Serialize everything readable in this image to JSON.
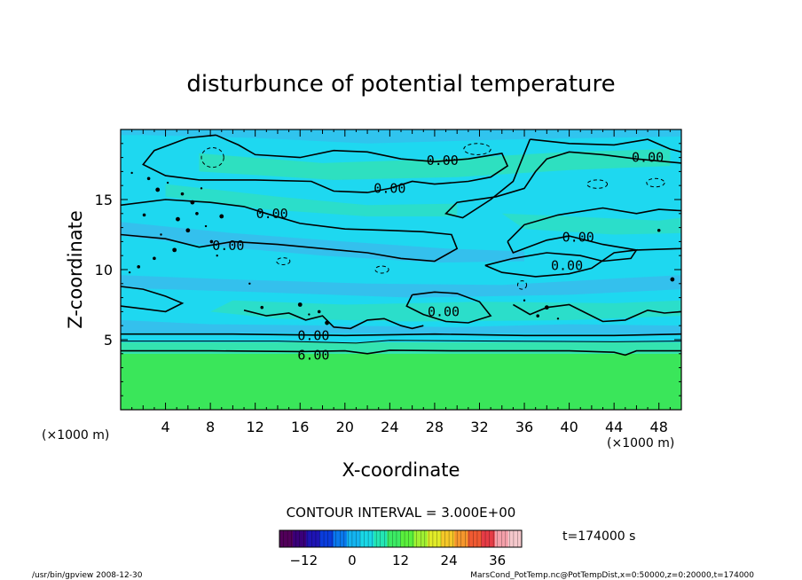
{
  "chart_data": {
    "type": "heatmap",
    "title": "disturbunce of potential temperature",
    "xlabel": "X-coordinate",
    "ylabel": "Z-coordinate",
    "x_unit": "(×1000 m)",
    "y_unit": "(×1000 m)",
    "xlim": [
      0,
      50
    ],
    "ylim": [
      0,
      20
    ],
    "x_ticks": [
      4,
      8,
      12,
      16,
      20,
      24,
      28,
      32,
      36,
      40,
      44,
      48
    ],
    "y_ticks": [
      5,
      10,
      15
    ],
    "contour_interval_text": "CONTOUR INTERVAL = 3.000E+00",
    "time_text": "t=174000 s",
    "colorbar": {
      "min": -18,
      "max": 42,
      "tick_values": [
        -12,
        0,
        12,
        24,
        36
      ],
      "colors": [
        "#52005a",
        "#3a007a",
        "#1e14b4",
        "#0a3cdc",
        "#0a78ec",
        "#14b4f0",
        "#19d7e6",
        "#23e6b4",
        "#3ceb64",
        "#5af03c",
        "#a0f032",
        "#e1eb28",
        "#f5c828",
        "#f5962d",
        "#f05a32",
        "#e63c46",
        "#f5a0aa",
        "#f5c8cc"
      ]
    },
    "field_colors": {
      "near_zero": "#1ed8f0",
      "slightly_negative": "#3cb8ec",
      "slightly_positive": "#34e3b0",
      "lower_layer": "#3ae65a"
    },
    "contour_labels": [
      {
        "x": 28.7,
        "z": 17.8,
        "text": "0.00"
      },
      {
        "x": 24.0,
        "z": 15.8,
        "text": "0.00"
      },
      {
        "x": 13.5,
        "z": 14.0,
        "text": "0.00"
      },
      {
        "x": 9.6,
        "z": 11.7,
        "text": "0.00"
      },
      {
        "x": 47.0,
        "z": 18.0,
        "text": "0.00"
      },
      {
        "x": 40.8,
        "z": 12.3,
        "text": "0.00"
      },
      {
        "x": 39.8,
        "z": 10.3,
        "text": "0.00"
      },
      {
        "x": 28.8,
        "z": 7.0,
        "text": "0.00"
      },
      {
        "x": 17.2,
        "z": 5.3,
        "text": "0.00"
      },
      {
        "x": 17.2,
        "z": 3.9,
        "text": "6.00"
      }
    ],
    "footer_left": "/usr/bin/gpview   2008-12-30",
    "footer_right": "MarsCond_PotTemp.nc@PotTempDist,x=0:50000,z=0:20000,t=174000"
  }
}
